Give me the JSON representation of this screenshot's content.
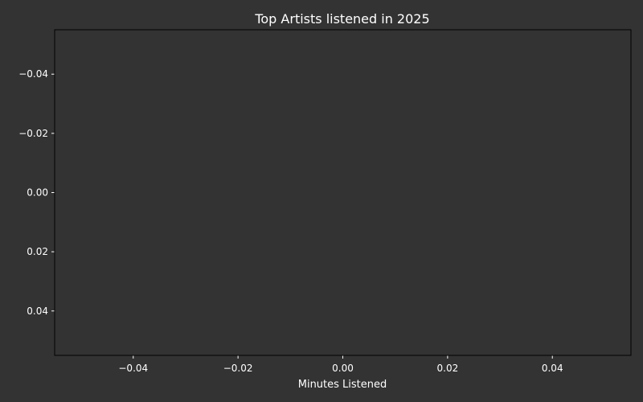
{
  "chart_data": {
    "type": "bar",
    "title": "Top Artists listened in 2025",
    "xlabel": "Minutes Listened",
    "ylabel": "",
    "categories": [],
    "values": [],
    "xlim": [
      -0.055,
      0.055
    ],
    "ylim": [
      -0.055,
      0.055
    ],
    "y_inverted": true,
    "x_ticks": [
      -0.04,
      -0.02,
      0.0,
      0.02,
      0.04
    ],
    "x_tick_labels": [
      "−0.04",
      "−0.02",
      "0.00",
      "0.02",
      "0.04"
    ],
    "y_ticks": [
      -0.04,
      -0.02,
      0.0,
      0.02,
      0.04
    ],
    "y_tick_labels": [
      "−0.04",
      "−0.02",
      "0.00",
      "0.02",
      "0.04"
    ],
    "grid": false,
    "legend": "none"
  },
  "colors": {
    "background": "#333333",
    "axes_face": "#333333",
    "text": "#ffffff",
    "spine": "#000000"
  }
}
